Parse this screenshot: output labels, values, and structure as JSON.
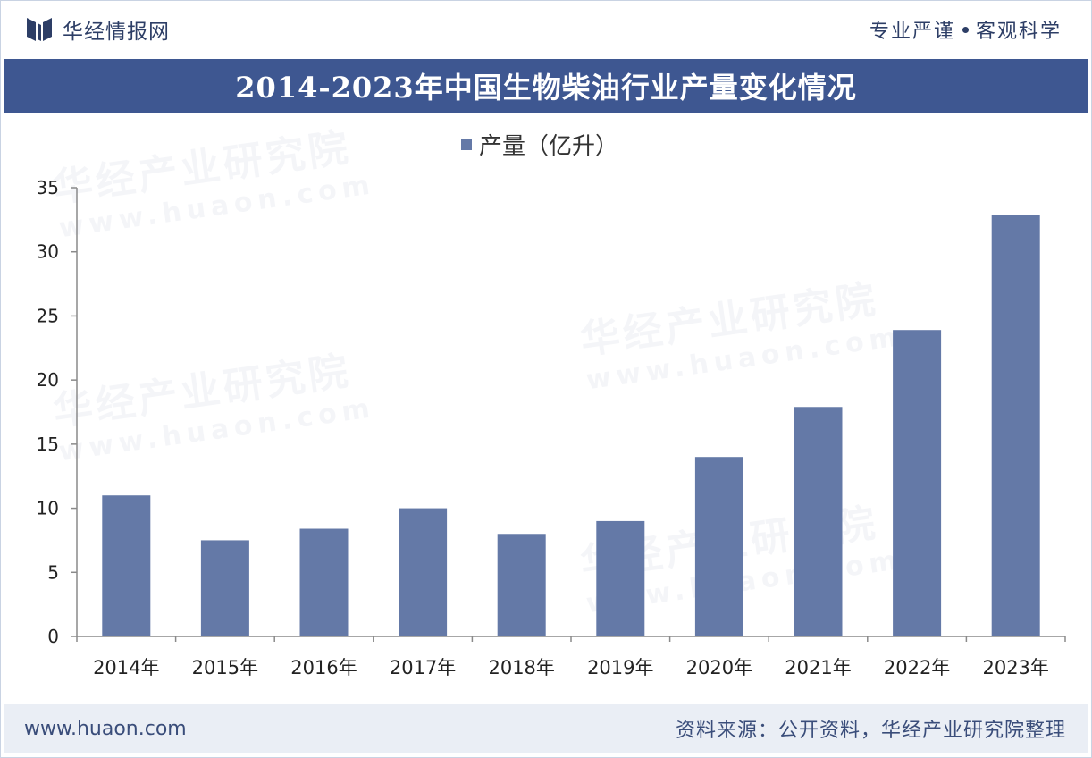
{
  "header": {
    "brand_name": "华经情报网",
    "slogan_left": "专业严谨",
    "slogan_right": "客观科学"
  },
  "title": "2014-2023年中国生物柴油行业产量变化情况",
  "footer": {
    "url": "www.huaon.com",
    "source": "资料来源：公开资料，华经产业研究院整理"
  },
  "watermark": {
    "cn": "华经产业研究院",
    "en": "www.huaon.com"
  },
  "colors": {
    "bar": "#6479a7",
    "title_bg": "#3e5791",
    "brand": "#2d3e66"
  },
  "chart_data": {
    "type": "bar",
    "title": "2014-2023年中国生物柴油行业产量变化情况",
    "legend": "产量（亿升）",
    "categories": [
      "2014年",
      "2015年",
      "2016年",
      "2017年",
      "2018年",
      "2019年",
      "2020年",
      "2021年",
      "2022年",
      "2023年"
    ],
    "series": [
      {
        "name": "产量（亿升）",
        "values": [
          11,
          7.5,
          8.4,
          10,
          8,
          9,
          14,
          17.9,
          23.9,
          32.9
        ]
      }
    ],
    "yticks": [
      0,
      5,
      10,
      15,
      20,
      25,
      30,
      35
    ],
    "ylim": [
      0,
      35
    ],
    "xlabel": "",
    "ylabel": "",
    "legend_position": "top-center"
  }
}
